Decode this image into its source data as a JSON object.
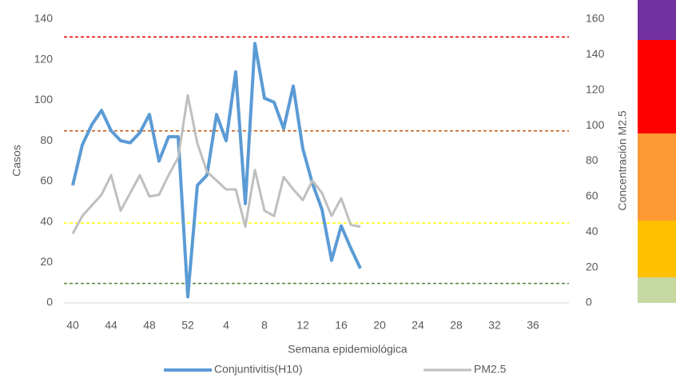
{
  "chart_data": {
    "type": "line",
    "xlabel": "Semana epidemiológica",
    "ylabel": "Casos",
    "y2label": "Concentración M2.5",
    "categories": [
      "40",
      null,
      null,
      null,
      "44",
      null,
      null,
      null,
      "48",
      null,
      null,
      null,
      "52",
      null,
      null,
      null,
      "4",
      null,
      null,
      null,
      "8",
      null,
      null,
      null,
      "12",
      null,
      null,
      null,
      "16",
      null,
      null,
      null,
      "20",
      null,
      null,
      null,
      "24",
      null,
      null,
      null,
      "28",
      null,
      null,
      null,
      "32",
      null,
      null,
      null,
      "36",
      null,
      null,
      null
    ],
    "series": [
      {
        "name": "Conjuntivitis(H10)",
        "color": "#5b9bd5",
        "axis": "y",
        "values": [
          58,
          78,
          88,
          95,
          85,
          80,
          79,
          84,
          93,
          70,
          82,
          82,
          3,
          58,
          63,
          93,
          80,
          114,
          49,
          128,
          101,
          99,
          86,
          107,
          76,
          59,
          46,
          21,
          38,
          27,
          17,
          null,
          null,
          null,
          null,
          null,
          null,
          null,
          null,
          null,
          null,
          null,
          null,
          null,
          null,
          null,
          null,
          null,
          null,
          null,
          null,
          null
        ]
      },
      {
        "name": "PM2.5",
        "color": "#bfbfbf",
        "axis": "y2",
        "values": [
          39,
          49,
          55,
          61,
          72,
          52,
          62,
          72,
          60,
          61,
          72,
          82,
          117,
          90,
          74,
          69,
          64,
          64,
          43,
          75,
          52,
          49,
          71,
          64,
          58,
          69,
          62,
          49,
          59,
          44,
          43,
          null,
          null,
          null,
          null,
          null,
          null,
          null,
          null,
          null,
          null,
          null,
          null,
          null,
          null,
          null,
          null,
          null,
          null,
          null,
          null,
          null
        ]
      }
    ],
    "ylim": [
      0,
      140
    ],
    "yticks": [
      0,
      20,
      40,
      60,
      80,
      100,
      120,
      140
    ],
    "y2lim": [
      0,
      160
    ],
    "y2ticks": [
      0,
      20,
      40,
      60,
      80,
      100,
      120,
      140,
      160
    ],
    "thresholds": [
      {
        "value": 150,
        "color": "#e00000",
        "axis": "y2"
      },
      {
        "value": 97,
        "color": "#c55a11",
        "axis": "y2"
      },
      {
        "value": 45,
        "color": "#ffff00",
        "axis": "y2"
      },
      {
        "value": 11,
        "color": "#548235",
        "axis": "y2"
      }
    ],
    "color_bar": [
      "#c5d9a0",
      "#ffc000",
      "#ff9933",
      "#ff0000",
      "#7030a0"
    ],
    "legend": "bottom"
  }
}
